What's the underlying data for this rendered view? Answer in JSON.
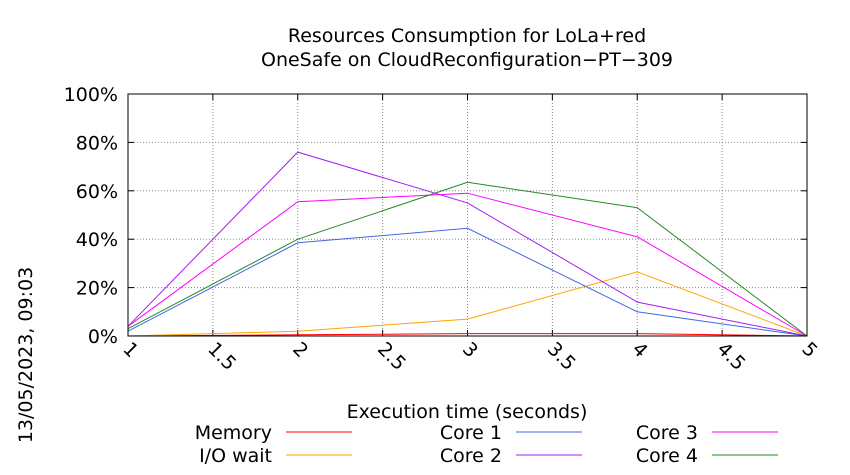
{
  "side_label": "13/05/2023, 09:03",
  "chart_data": {
    "type": "line",
    "title": "Resources Consumption for LoLa+red",
    "subtitle": "OneSafe on CloudReconfiguration−PT−309",
    "xlabel": "Execution time (seconds)",
    "ylabel": "",
    "xlim": [
      1,
      5
    ],
    "ylim": [
      0,
      100
    ],
    "x_ticks": [
      "1",
      "1.5",
      "2",
      "2.5",
      "3",
      "3.5",
      "4",
      "4.5",
      "5"
    ],
    "x_tick_values": [
      1,
      1.5,
      2,
      2.5,
      3,
      3.5,
      4,
      4.5,
      5
    ],
    "y_ticks": [
      "0%",
      "20%",
      "40%",
      "60%",
      "80%",
      "100%"
    ],
    "y_tick_values": [
      0,
      20,
      40,
      60,
      80,
      100
    ],
    "grid": true,
    "legend_position": "bottom",
    "x": [
      1,
      2,
      3,
      4,
      5
    ],
    "series": [
      {
        "name": "Memory",
        "color": "#ff0000",
        "values": [
          0,
          0.5,
          1,
          1,
          0
        ]
      },
      {
        "name": "I/O wait",
        "color": "#ffa500",
        "values": [
          0,
          2,
          7,
          26.5,
          0
        ]
      },
      {
        "name": "Core 1",
        "color": "#4169e1",
        "values": [
          2,
          38.5,
          44.5,
          10,
          0
        ]
      },
      {
        "name": "Core 2",
        "color": "#a020f0",
        "values": [
          4,
          76,
          55,
          14,
          0
        ]
      },
      {
        "name": "Core 3",
        "color": "#ff00ff",
        "values": [
          4,
          55.5,
          59,
          41,
          0
        ]
      },
      {
        "name": "Core 4",
        "color": "#228b22",
        "values": [
          3,
          40,
          63.5,
          53,
          0
        ]
      }
    ]
  }
}
